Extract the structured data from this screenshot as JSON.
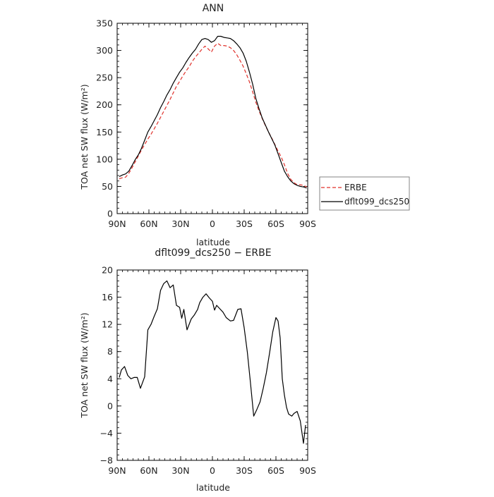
{
  "chart_data": [
    {
      "type": "line",
      "title": "ANN",
      "xlabel": "latitude",
      "ylabel": "TOA net SW flux (W/m²)",
      "xlim": [
        -90,
        90
      ],
      "ylim": [
        0,
        350
      ],
      "xticks": [
        {
          "value": -90,
          "label": "90N"
        },
        {
          "value": -60,
          "label": "60N"
        },
        {
          "value": -30,
          "label": "30N"
        },
        {
          "value": 0,
          "label": "0"
        },
        {
          "value": 30,
          "label": "30S"
        },
        {
          "value": 60,
          "label": "60S"
        },
        {
          "value": 90,
          "label": "90S"
        }
      ],
      "yticks": [
        0,
        50,
        100,
        150,
        200,
        250,
        300,
        350
      ],
      "legend_position": "right",
      "series": [
        {
          "name": "ERBE",
          "color": "#e0312b",
          "dash": "dashed",
          "x": [
            -88,
            -85,
            -82,
            -79,
            -76,
            -73,
            -70,
            -67,
            -64,
            -61,
            -58,
            -55,
            -52,
            -49,
            -46,
            -43,
            -40,
            -37,
            -34,
            -31,
            -28,
            -25,
            -22,
            -19,
            -16,
            -13,
            -10,
            -7,
            -4,
            -1,
            2,
            5,
            8,
            11,
            14,
            17,
            20,
            23,
            26,
            29,
            32,
            35,
            38,
            41,
            44,
            47,
            50,
            53,
            56,
            59,
            62,
            65,
            68,
            71,
            74,
            77,
            80,
            83,
            86,
            89
          ],
          "y": [
            64,
            66,
            67,
            74,
            84,
            95,
            106,
            117,
            127,
            137,
            146,
            156,
            166,
            177,
            188,
            199,
            210,
            222,
            234,
            243,
            253,
            262,
            270,
            280,
            288,
            295,
            302,
            308,
            303,
            297,
            308,
            313,
            309,
            309,
            308,
            305,
            300,
            292,
            282,
            271,
            257,
            242,
            224,
            205,
            189,
            175,
            162,
            150,
            139,
            127,
            115,
            104,
            90,
            74,
            63,
            57,
            53,
            53,
            52,
            49
          ]
        },
        {
          "name": "dflt099_dcs250",
          "color": "#000000",
          "dash": "solid",
          "x": [
            -88,
            -85,
            -82,
            -79,
            -76,
            -73,
            -70,
            -67,
            -64,
            -61,
            -58,
            -55,
            -52,
            -49,
            -46,
            -43,
            -40,
            -37,
            -34,
            -31,
            -28,
            -25,
            -22,
            -19,
            -16,
            -13,
            -10,
            -7,
            -4,
            -1,
            2,
            5,
            8,
            11,
            14,
            17,
            20,
            23,
            26,
            29,
            32,
            35,
            38,
            41,
            44,
            47,
            50,
            53,
            56,
            59,
            62,
            65,
            68,
            71,
            74,
            77,
            80,
            83,
            86,
            89
          ],
          "y": [
            68,
            71,
            73,
            78,
            88,
            99,
            108,
            120,
            135,
            150,
            160,
            171,
            182,
            195,
            206,
            218,
            228,
            240,
            250,
            260,
            268,
            278,
            287,
            295,
            302,
            312,
            320,
            322,
            320,
            315,
            318,
            326,
            326,
            324,
            323,
            322,
            318,
            312,
            305,
            295,
            280,
            260,
            238,
            212,
            193,
            176,
            163,
            150,
            138,
            126,
            110,
            94,
            78,
            68,
            60,
            55,
            52,
            50,
            49,
            47
          ]
        }
      ]
    },
    {
      "type": "line",
      "title": "dflt099_dcs250 − ERBE",
      "xlabel": "latitude",
      "ylabel": "TOA net SW flux (W/m²)",
      "xlim": [
        -90,
        90
      ],
      "ylim": [
        -8,
        20
      ],
      "xticks": [
        {
          "value": -90,
          "label": "90N"
        },
        {
          "value": -60,
          "label": "60N"
        },
        {
          "value": -30,
          "label": "30N"
        },
        {
          "value": 0,
          "label": "0"
        },
        {
          "value": 30,
          "label": "30S"
        },
        {
          "value": 60,
          "label": "60S"
        },
        {
          "value": 90,
          "label": "90S"
        }
      ],
      "yticks": [
        -8,
        -4,
        0,
        4,
        8,
        12,
        16,
        20
      ],
      "series": [
        {
          "color": "#000000",
          "dash": "solid",
          "x": [
            -88,
            -86,
            -83,
            -80,
            -77,
            -74,
            -71,
            -68,
            -64,
            -61,
            -58,
            -55,
            -52,
            -49,
            -46,
            -43,
            -40,
            -37,
            -34,
            -31,
            -29,
            -27,
            -24,
            -20,
            -17,
            -14,
            -12,
            -9,
            -6,
            -3,
            0,
            2,
            4,
            7,
            10,
            13,
            17,
            20,
            24,
            27,
            30,
            33,
            36,
            39,
            42,
            45,
            48,
            51,
            54,
            57,
            60,
            62,
            64,
            66,
            68,
            70,
            72,
            75,
            77,
            80,
            83,
            86,
            88
          ],
          "y": [
            4.2,
            5.3,
            5.8,
            4.5,
            4.0,
            4.2,
            4.2,
            2.6,
            4.3,
            11.2,
            12.0,
            13.2,
            14.3,
            17.0,
            18.0,
            18.4,
            17.4,
            17.8,
            14.8,
            14.5,
            12.9,
            14.2,
            11.2,
            12.8,
            13.4,
            14.2,
            15.2,
            16.0,
            16.5,
            15.9,
            15.4,
            14.1,
            14.8,
            14.3,
            13.8,
            13.0,
            12.5,
            12.6,
            14.2,
            14.3,
            11.5,
            7.9,
            3.3,
            -1.5,
            -0.5,
            0.6,
            2.6,
            4.9,
            7.8,
            10.9,
            13.0,
            12.5,
            10.0,
            4.0,
            1.6,
            -0.2,
            -1.2,
            -1.5,
            -1.1,
            -0.8,
            -2.2,
            -5.5,
            -2.8
          ]
        }
      ]
    }
  ]
}
